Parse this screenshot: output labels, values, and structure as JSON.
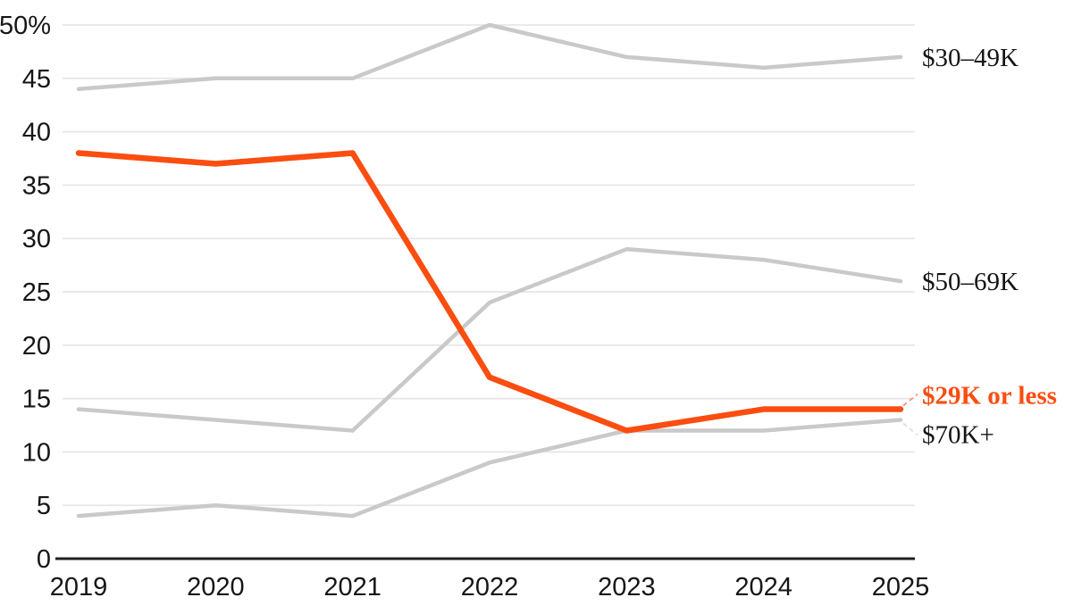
{
  "chart_data": {
    "type": "line",
    "title": "",
    "xlabel": "",
    "ylabel": "",
    "x": [
      "2019",
      "2020",
      "2021",
      "2022",
      "2023",
      "2024",
      "2025"
    ],
    "ylim": [
      0,
      50
    ],
    "grid": true,
    "legend_position": "inline-right-of-line-ends",
    "y_ticks": [
      {
        "value": 0,
        "label": "0"
      },
      {
        "value": 5,
        "label": "5"
      },
      {
        "value": 10,
        "label": "10"
      },
      {
        "value": 15,
        "label": "15"
      },
      {
        "value": 20,
        "label": "20"
      },
      {
        "value": 25,
        "label": "25"
      },
      {
        "value": 30,
        "label": "30"
      },
      {
        "value": 35,
        "label": "35"
      },
      {
        "value": 40,
        "label": "40"
      },
      {
        "value": 45,
        "label": "45"
      },
      {
        "value": 50,
        "label": "50%"
      }
    ],
    "series": [
      {
        "name": "$30–49K",
        "values": [
          44,
          45,
          45,
          50,
          47,
          46,
          47
        ],
        "color": "#c9c9c9",
        "stroke_width": 4.5,
        "label_color": "#141414",
        "label_bold": false,
        "label_placement": "right",
        "leader": "none"
      },
      {
        "name": "$50–69K",
        "values": [
          14,
          13,
          12,
          24,
          29,
          28,
          26
        ],
        "color": "#c9c9c9",
        "stroke_width": 4.5,
        "label_color": "#141414",
        "label_bold": false,
        "label_placement": "right",
        "leader": "none"
      },
      {
        "name": "$70K+",
        "values": [
          4,
          5,
          4,
          9,
          12,
          12,
          13
        ],
        "color": "#c9c9c9",
        "stroke_width": 4.5,
        "label_color": "#141414",
        "label_bold": false,
        "label_placement": "below-right",
        "leader": "dashed"
      },
      {
        "name": "$29K or less",
        "values": [
          38,
          37,
          38,
          17,
          12,
          14,
          14
        ],
        "color": "#fb4d10",
        "stroke_width": 6.5,
        "label_color": "#fb4d10",
        "label_bold": true,
        "label_placement": "above-right",
        "leader": "dashed"
      }
    ],
    "colors": {
      "accent_orange": "#fb4d10",
      "line_gray": "#c9c9c9",
      "gridline": "#e6e6e6",
      "axis": "#1f1f1f",
      "text": "#161616",
      "background": "#ffffff"
    }
  }
}
